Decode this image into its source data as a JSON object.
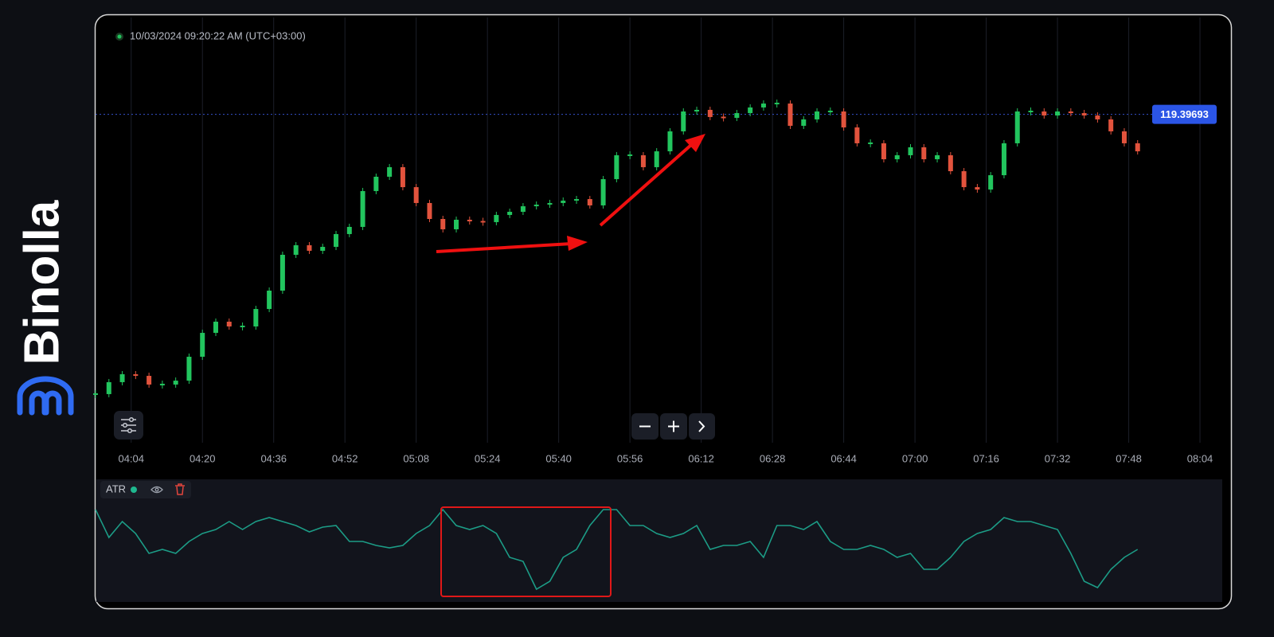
{
  "brand": "Binolla",
  "timestamp": "10/03/2024 09:20:22 AM (UTC+03:00)",
  "chart_data": [
    {
      "type": "candlestick",
      "x": [
        236,
        239,
        242,
        245,
        248,
        251,
        254,
        257,
        260,
        263,
        266,
        269,
        272,
        275,
        278,
        281,
        284,
        287,
        290,
        293,
        296,
        299,
        302,
        305,
        308,
        311,
        314,
        317,
        320,
        323,
        326,
        329,
        332,
        335,
        338,
        341,
        344,
        347,
        350,
        353,
        356,
        359,
        362,
        365,
        368,
        371,
        374,
        377,
        380,
        383,
        386,
        389,
        392,
        395,
        398,
        401,
        404,
        407,
        410,
        413,
        416,
        419,
        422,
        425,
        428,
        431,
        434,
        437,
        440,
        443,
        446,
        449,
        452,
        455,
        458,
        461,
        464,
        467,
        470
      ],
      "values": [
        119.1042,
        119.1167,
        119.125,
        119.1233,
        119.1142,
        119.1142,
        119.1183,
        119.1433,
        119.1683,
        119.18,
        119.175,
        119.175,
        119.1933,
        119.2125,
        119.25,
        119.26,
        119.2542,
        119.2583,
        119.2717,
        119.2792,
        119.3167,
        119.3317,
        119.3417,
        119.3208,
        119.3042,
        119.2875,
        119.2767,
        119.2867,
        119.285,
        119.2842,
        119.2917,
        119.295,
        119.3008,
        119.3025,
        119.3042,
        119.3067,
        119.3083,
        119.3017,
        119.3292,
        119.3542,
        119.3542,
        119.3417,
        119.3583,
        119.3792,
        119.4,
        119.4017,
        119.3942,
        119.3933,
        119.3983,
        119.4042,
        119.4083,
        119.4083,
        119.385,
        119.3917,
        119.4,
        119.4,
        119.3833,
        119.3667,
        119.3667,
        119.35,
        119.3542,
        119.3625,
        119.35,
        119.3542,
        119.3375,
        119.3208,
        119.3183,
        119.3333,
        119.3667,
        119.4,
        119.4,
        119.3958,
        119.4,
        119.3983,
        119.3958,
        119.3917,
        119.3792,
        119.3667,
        119.3583
      ],
      "up_color": "#22c55e",
      "down_color": "#e2533d",
      "xlim": [
        236,
        489
      ],
      "xticks": [
        {
          "value": 244,
          "label": "04:04"
        },
        {
          "value": 260,
          "label": "04:20"
        },
        {
          "value": 276,
          "label": "04:36"
        },
        {
          "value": 292,
          "label": "04:52"
        },
        {
          "value": 308,
          "label": "05:08"
        },
        {
          "value": 324,
          "label": "05:24"
        },
        {
          "value": 340,
          "label": "05:40"
        },
        {
          "value": 356,
          "label": "05:56"
        },
        {
          "value": 372,
          "label": "06:12"
        },
        {
          "value": 388,
          "label": "06:28"
        },
        {
          "value": 404,
          "label": "06:44"
        },
        {
          "value": 420,
          "label": "07:00"
        },
        {
          "value": 436,
          "label": "07:16"
        },
        {
          "value": 452,
          "label": "07:32"
        },
        {
          "value": 468,
          "label": "07:48"
        },
        {
          "value": 484,
          "label": "08:04"
        }
      ],
      "ylim": [
        119.05,
        119.5
      ],
      "current_price": 119.39693,
      "grid": true
    },
    {
      "type": "line",
      "name": "ATR",
      "color": "#1c9c86",
      "values": [
        0.006,
        0.00425,
        0.00525,
        0.0045,
        0.00325,
        0.0035,
        0.00325,
        0.004,
        0.0045,
        0.00475,
        0.00525,
        0.00475,
        0.00525,
        0.0055,
        0.00525,
        0.005,
        0.0046,
        0.0049,
        0.005,
        0.004,
        0.004,
        0.00375,
        0.0036,
        0.00375,
        0.0045,
        0.005,
        0.006,
        0.005,
        0.00475,
        0.005,
        0.0045,
        0.003,
        0.00275,
        0.001,
        0.0015,
        0.003,
        0.0035,
        0.005,
        0.006,
        0.006,
        0.005,
        0.005,
        0.0045,
        0.00425,
        0.0045,
        0.005,
        0.0035,
        0.00375,
        0.00375,
        0.004,
        0.003,
        0.005,
        0.005,
        0.00475,
        0.00525,
        0.004,
        0.0035,
        0.0035,
        0.00375,
        0.0035,
        0.003,
        0.00325,
        0.00225,
        0.00225,
        0.003,
        0.004,
        0.0045,
        0.00475,
        0.0055,
        0.00525,
        0.00525,
        0.005,
        0.00475,
        0.00325,
        0.0015,
        0.0011,
        0.00225,
        0.003,
        0.0035
      ],
      "ylim": [
        0,
        0.008
      ]
    }
  ]
}
